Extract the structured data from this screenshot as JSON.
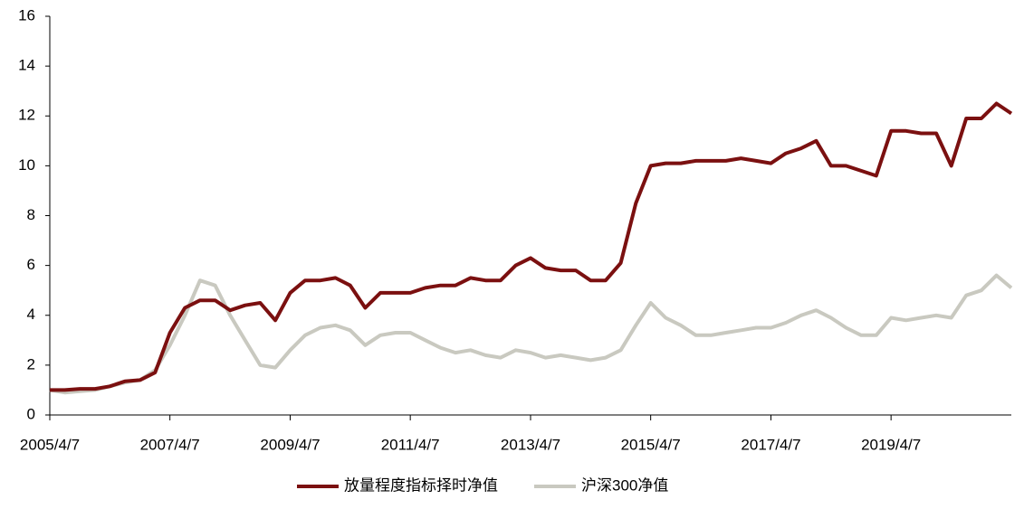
{
  "chart_data": {
    "type": "line",
    "x": [
      "2005/4/7",
      "2005/7/7",
      "2005/10/7",
      "2006/1/7",
      "2006/4/7",
      "2006/7/7",
      "2006/10/7",
      "2007/1/7",
      "2007/4/7",
      "2007/7/7",
      "2007/10/7",
      "2008/1/7",
      "2008/4/7",
      "2008/7/7",
      "2008/10/7",
      "2009/1/7",
      "2009/4/7",
      "2009/7/7",
      "2009/10/7",
      "2010/1/7",
      "2010/4/7",
      "2010/7/7",
      "2010/10/7",
      "2011/1/7",
      "2011/4/7",
      "2011/7/7",
      "2011/10/7",
      "2012/1/7",
      "2012/4/7",
      "2012/7/7",
      "2012/10/7",
      "2013/1/7",
      "2013/4/7",
      "2013/7/7",
      "2013/10/7",
      "2014/1/7",
      "2014/4/7",
      "2014/7/7",
      "2014/10/7",
      "2015/1/7",
      "2015/4/7",
      "2015/7/7",
      "2015/10/7",
      "2016/1/7",
      "2016/4/7",
      "2016/7/7",
      "2016/10/7",
      "2017/1/7",
      "2017/4/7",
      "2017/7/7",
      "2017/10/7",
      "2018/1/7",
      "2018/4/7",
      "2018/7/7",
      "2018/10/7",
      "2019/1/7",
      "2019/4/7",
      "2019/7/7",
      "2019/10/7",
      "2020/1/7",
      "2020/4/7",
      "2020/7/7",
      "2020/10/7",
      "2021/1/7",
      "2021/4/7"
    ],
    "series": [
      {
        "name": "放量程度指标择时净值",
        "color": "#7b1010",
        "values": [
          1.0,
          1.0,
          1.05,
          1.05,
          1.15,
          1.35,
          1.4,
          1.7,
          3.3,
          4.3,
          4.6,
          4.6,
          4.2,
          4.4,
          4.5,
          3.8,
          4.9,
          5.4,
          5.4,
          5.5,
          5.2,
          4.3,
          4.9,
          4.9,
          4.9,
          5.1,
          5.2,
          5.2,
          5.5,
          5.4,
          5.4,
          6.0,
          6.3,
          5.9,
          5.8,
          5.8,
          5.4,
          5.4,
          6.1,
          8.5,
          10.0,
          10.1,
          10.1,
          10.2,
          10.2,
          10.2,
          10.3,
          10.2,
          10.1,
          10.5,
          10.7,
          11.0,
          10.0,
          10.0,
          9.8,
          9.6,
          11.4,
          11.4,
          11.3,
          11.3,
          10.0,
          11.9,
          11.9,
          12.5,
          12.1
        ]
      },
      {
        "name": "沪深300净值",
        "color": "#c9c9c0",
        "values": [
          1.0,
          0.9,
          0.95,
          1.0,
          1.15,
          1.3,
          1.4,
          1.8,
          2.8,
          4.0,
          5.4,
          5.2,
          4.0,
          3.0,
          2.0,
          1.9,
          2.6,
          3.2,
          3.5,
          3.6,
          3.4,
          2.8,
          3.2,
          3.3,
          3.3,
          3.0,
          2.7,
          2.5,
          2.6,
          2.4,
          2.3,
          2.6,
          2.5,
          2.3,
          2.4,
          2.3,
          2.2,
          2.3,
          2.6,
          3.6,
          4.5,
          3.9,
          3.6,
          3.2,
          3.2,
          3.3,
          3.4,
          3.5,
          3.5,
          3.7,
          4.0,
          4.2,
          3.9,
          3.5,
          3.2,
          3.2,
          3.9,
          3.8,
          3.9,
          4.0,
          3.9,
          4.8,
          5.0,
          5.6,
          5.1
        ]
      }
    ],
    "xlim": [
      "2005/4/7",
      "2021/4/7"
    ],
    "xticks": [
      "2005/4/7",
      "2007/4/7",
      "2009/4/7",
      "2011/4/7",
      "2013/4/7",
      "2015/4/7",
      "2017/4/7",
      "2019/4/7"
    ],
    "ylim": [
      0,
      16
    ],
    "yticks": [
      0,
      2,
      4,
      6,
      8,
      10,
      12,
      14,
      16
    ],
    "grid": false,
    "legend": "bottom"
  }
}
